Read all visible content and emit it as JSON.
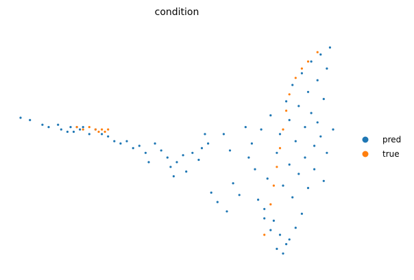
{
  "chart_data": {
    "type": "scatter",
    "title": "condition",
    "xlabel": "",
    "ylabel": "",
    "axes_visible": false,
    "grid": false,
    "legend_placement": "right",
    "xlim": [
      0,
      1
    ],
    "ylim": [
      0,
      1
    ],
    "series": [
      {
        "name": "pred",
        "color": "#1f77b4",
        "points": [
          [
            0.0,
            0.62
          ],
          [
            0.03,
            0.61
          ],
          [
            0.07,
            0.59
          ],
          [
            0.09,
            0.58
          ],
          [
            0.12,
            0.59
          ],
          [
            0.13,
            0.57
          ],
          [
            0.15,
            0.56
          ],
          [
            0.16,
            0.58
          ],
          [
            0.17,
            0.56
          ],
          [
            0.18,
            0.58
          ],
          [
            0.19,
            0.57
          ],
          [
            0.2,
            0.58
          ],
          [
            0.22,
            0.55
          ],
          [
            0.24,
            0.57
          ],
          [
            0.26,
            0.55
          ],
          [
            0.28,
            0.54
          ],
          [
            0.3,
            0.52
          ],
          [
            0.32,
            0.51
          ],
          [
            0.34,
            0.52
          ],
          [
            0.36,
            0.49
          ],
          [
            0.38,
            0.5
          ],
          [
            0.4,
            0.47
          ],
          [
            0.41,
            0.43
          ],
          [
            0.43,
            0.51
          ],
          [
            0.45,
            0.48
          ],
          [
            0.47,
            0.45
          ],
          [
            0.48,
            0.41
          ],
          [
            0.49,
            0.37
          ],
          [
            0.5,
            0.43
          ],
          [
            0.52,
            0.46
          ],
          [
            0.53,
            0.39
          ],
          [
            0.55,
            0.47
          ],
          [
            0.57,
            0.44
          ],
          [
            0.58,
            0.49
          ],
          [
            0.59,
            0.55
          ],
          [
            0.6,
            0.51
          ],
          [
            0.61,
            0.3
          ],
          [
            0.63,
            0.26
          ],
          [
            0.65,
            0.55
          ],
          [
            0.66,
            0.22
          ],
          [
            0.67,
            0.48
          ],
          [
            0.68,
            0.34
          ],
          [
            0.7,
            0.29
          ],
          [
            0.72,
            0.58
          ],
          [
            0.73,
            0.45
          ],
          [
            0.74,
            0.51
          ],
          [
            0.75,
            0.4
          ],
          [
            0.76,
            0.27
          ],
          [
            0.77,
            0.57
          ],
          [
            0.78,
            0.23
          ],
          [
            0.79,
            0.36
          ],
          [
            0.8,
            0.63
          ],
          [
            0.81,
            0.18
          ],
          [
            0.82,
            0.47
          ],
          [
            0.83,
            0.12
          ],
          [
            0.83,
            0.55
          ],
          [
            0.84,
            0.33
          ],
          [
            0.85,
            0.08
          ],
          [
            0.85,
            0.69
          ],
          [
            0.86,
            0.42
          ],
          [
            0.86,
            0.61
          ],
          [
            0.87,
            0.28
          ],
          [
            0.87,
            0.76
          ],
          [
            0.88,
            0.15
          ],
          [
            0.88,
            0.52
          ],
          [
            0.89,
            0.67
          ],
          [
            0.89,
            0.38
          ],
          [
            0.9,
            0.81
          ],
          [
            0.9,
            0.21
          ],
          [
            0.91,
            0.58
          ],
          [
            0.91,
            0.45
          ],
          [
            0.92,
            0.73
          ],
          [
            0.92,
            0.32
          ],
          [
            0.93,
            0.64
          ],
          [
            0.93,
            0.86
          ],
          [
            0.94,
            0.5
          ],
          [
            0.94,
            0.4
          ],
          [
            0.95,
            0.78
          ],
          [
            0.95,
            0.6
          ],
          [
            0.96,
            0.89
          ],
          [
            0.96,
            0.54
          ],
          [
            0.97,
            0.35
          ],
          [
            0.97,
            0.7
          ],
          [
            0.98,
            0.47
          ],
          [
            0.98,
            0.83
          ],
          [
            0.99,
            0.92
          ],
          [
            1.0,
            0.57
          ],
          [
            0.84,
            0.04
          ],
          [
            0.86,
            0.1
          ],
          [
            0.82,
            0.06
          ],
          [
            0.8,
            0.14
          ],
          [
            0.78,
            0.19
          ]
        ]
      },
      {
        "name": "true",
        "color": "#ff7f0e",
        "points": [
          [
            0.18,
            0.58
          ],
          [
            0.2,
            0.57
          ],
          [
            0.22,
            0.58
          ],
          [
            0.24,
            0.57
          ],
          [
            0.25,
            0.56
          ],
          [
            0.26,
            0.57
          ],
          [
            0.27,
            0.56
          ],
          [
            0.28,
            0.57
          ],
          [
            0.78,
            0.12
          ],
          [
            0.8,
            0.25
          ],
          [
            0.81,
            0.33
          ],
          [
            0.82,
            0.41
          ],
          [
            0.83,
            0.49
          ],
          [
            0.84,
            0.57
          ],
          [
            0.85,
            0.65
          ],
          [
            0.86,
            0.72
          ],
          [
            0.88,
            0.79
          ],
          [
            0.9,
            0.83
          ],
          [
            0.92,
            0.86
          ],
          [
            0.95,
            0.9
          ]
        ]
      }
    ]
  }
}
